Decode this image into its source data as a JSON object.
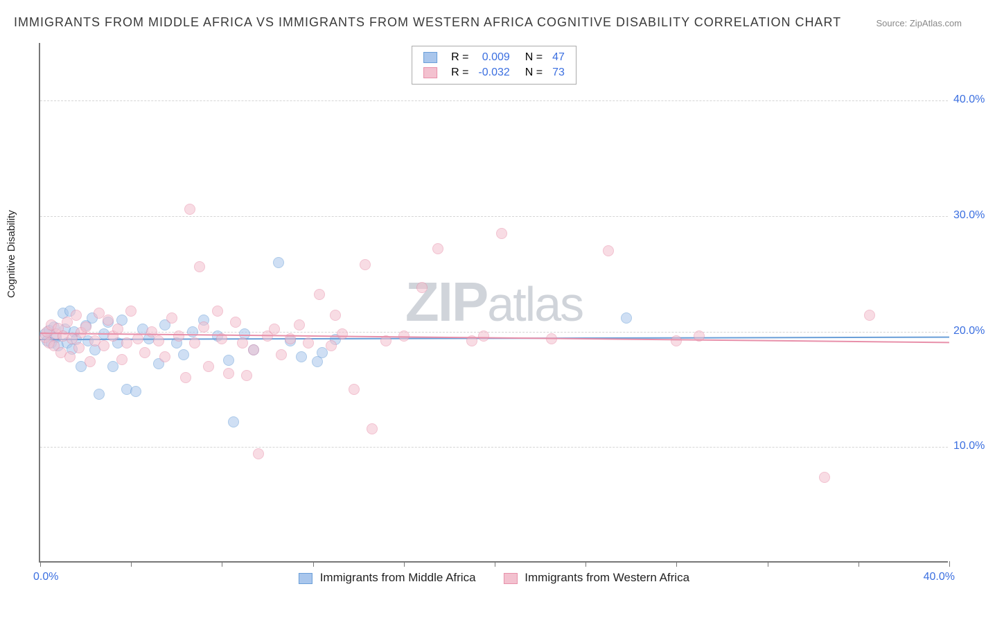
{
  "title": "IMMIGRANTS FROM MIDDLE AFRICA VS IMMIGRANTS FROM WESTERN AFRICA COGNITIVE DISABILITY CORRELATION CHART",
  "source": "Source: ZipAtlas.com",
  "ylabel": "Cognitive Disability",
  "watermark_bold": "ZIP",
  "watermark_light": "atlas",
  "chart": {
    "type": "scatter",
    "xlim": [
      0,
      40
    ],
    "ylim": [
      0,
      45
    ],
    "ytick_values": [
      10,
      20,
      30,
      40
    ],
    "ytick_labels": [
      "10.0%",
      "20.0%",
      "30.0%",
      "40.0%"
    ],
    "xtick_values": [
      0,
      4,
      8,
      12,
      16,
      20,
      24,
      28,
      32,
      36,
      40
    ],
    "xtick_label_left": "0.0%",
    "xtick_label_right": "40.0%",
    "marker_radius": 8,
    "marker_opacity": 0.55,
    "background": "#ffffff",
    "grid_color": "#d5d5d5",
    "axis_color": "#777777",
    "tick_label_color": "#3b6fe0",
    "value_color": "#3b6fe0",
    "series": [
      {
        "name": "Immigrants from Middle Africa",
        "short": "middle",
        "fill": "#a9c6ec",
        "stroke": "#6a9fd8",
        "R": "0.009",
        "N": "47",
        "trend": {
          "y0": 19.4,
          "y1": 19.6
        },
        "points": [
          [
            0.2,
            19.8
          ],
          [
            0.3,
            19.2
          ],
          [
            0.4,
            20.1
          ],
          [
            0.5,
            19.0
          ],
          [
            0.6,
            20.4
          ],
          [
            0.7,
            19.5
          ],
          [
            0.8,
            18.8
          ],
          [
            1.0,
            21.6
          ],
          [
            1.1,
            20.2
          ],
          [
            1.2,
            19.0
          ],
          [
            1.3,
            21.8
          ],
          [
            1.4,
            18.5
          ],
          [
            1.5,
            20.0
          ],
          [
            1.6,
            19.3
          ],
          [
            1.8,
            17.0
          ],
          [
            2.0,
            20.5
          ],
          [
            2.1,
            19.2
          ],
          [
            2.3,
            21.2
          ],
          [
            2.4,
            18.4
          ],
          [
            2.6,
            14.6
          ],
          [
            2.8,
            19.8
          ],
          [
            3.0,
            20.8
          ],
          [
            3.2,
            17.0
          ],
          [
            3.4,
            19.0
          ],
          [
            3.6,
            21.0
          ],
          [
            3.8,
            15.0
          ],
          [
            4.2,
            14.8
          ],
          [
            4.5,
            20.2
          ],
          [
            4.8,
            19.4
          ],
          [
            5.2,
            17.2
          ],
          [
            5.5,
            20.6
          ],
          [
            6.0,
            19.0
          ],
          [
            6.3,
            18.0
          ],
          [
            6.7,
            20.0
          ],
          [
            7.2,
            21.0
          ],
          [
            7.8,
            19.6
          ],
          [
            8.3,
            17.5
          ],
          [
            8.5,
            12.2
          ],
          [
            9.0,
            19.8
          ],
          [
            9.4,
            18.4
          ],
          [
            10.5,
            26.0
          ],
          [
            11.0,
            19.2
          ],
          [
            11.5,
            17.8
          ],
          [
            12.2,
            17.4
          ],
          [
            12.4,
            18.2
          ],
          [
            13.0,
            19.3
          ],
          [
            25.8,
            21.2
          ]
        ]
      },
      {
        "name": "Immigrants from Western Africa",
        "short": "western",
        "fill": "#f3c1cf",
        "stroke": "#e890aa",
        "R": "-0.032",
        "N": "73",
        "trend": {
          "y0": 19.9,
          "y1": 19.1
        },
        "points": [
          [
            0.2,
            19.5
          ],
          [
            0.3,
            20.0
          ],
          [
            0.4,
            19.0
          ],
          [
            0.5,
            20.6
          ],
          [
            0.6,
            18.8
          ],
          [
            0.7,
            19.8
          ],
          [
            0.8,
            20.3
          ],
          [
            0.9,
            18.2
          ],
          [
            1.0,
            19.6
          ],
          [
            1.2,
            20.8
          ],
          [
            1.3,
            17.8
          ],
          [
            1.4,
            19.4
          ],
          [
            1.6,
            21.4
          ],
          [
            1.7,
            18.6
          ],
          [
            1.8,
            19.9
          ],
          [
            2.0,
            20.4
          ],
          [
            2.2,
            17.4
          ],
          [
            2.4,
            19.2
          ],
          [
            2.6,
            21.6
          ],
          [
            2.8,
            18.8
          ],
          [
            3.0,
            21.0
          ],
          [
            3.2,
            19.6
          ],
          [
            3.4,
            20.2
          ],
          [
            3.6,
            17.6
          ],
          [
            3.8,
            19.0
          ],
          [
            4.0,
            21.8
          ],
          [
            4.3,
            19.4
          ],
          [
            4.6,
            18.2
          ],
          [
            4.9,
            20.0
          ],
          [
            5.2,
            19.2
          ],
          [
            5.5,
            17.8
          ],
          [
            5.8,
            21.2
          ],
          [
            6.1,
            19.6
          ],
          [
            6.4,
            16.0
          ],
          [
            6.6,
            30.6
          ],
          [
            6.8,
            19.0
          ],
          [
            7.0,
            25.6
          ],
          [
            7.2,
            20.4
          ],
          [
            7.4,
            17.0
          ],
          [
            7.8,
            21.8
          ],
          [
            8.0,
            19.4
          ],
          [
            8.3,
            16.4
          ],
          [
            8.6,
            20.8
          ],
          [
            8.9,
            19.0
          ],
          [
            9.1,
            16.2
          ],
          [
            9.4,
            18.4
          ],
          [
            9.6,
            9.4
          ],
          [
            10.0,
            19.6
          ],
          [
            10.3,
            20.2
          ],
          [
            10.6,
            18.0
          ],
          [
            11.0,
            19.4
          ],
          [
            11.4,
            20.6
          ],
          [
            11.8,
            19.0
          ],
          [
            12.3,
            23.2
          ],
          [
            12.8,
            18.8
          ],
          [
            13.0,
            21.4
          ],
          [
            13.3,
            19.8
          ],
          [
            13.8,
            15.0
          ],
          [
            14.3,
            25.8
          ],
          [
            14.6,
            11.6
          ],
          [
            15.2,
            19.2
          ],
          [
            16.0,
            19.6
          ],
          [
            16.8,
            23.8
          ],
          [
            17.5,
            27.2
          ],
          [
            19.0,
            19.2
          ],
          [
            19.5,
            19.6
          ],
          [
            20.3,
            28.5
          ],
          [
            22.5,
            19.4
          ],
          [
            25.0,
            27.0
          ],
          [
            28.0,
            19.2
          ],
          [
            29.0,
            19.6
          ],
          [
            34.5,
            7.4
          ],
          [
            36.5,
            21.4
          ]
        ]
      }
    ]
  },
  "legend_r_prefix": "R =",
  "legend_n_prefix": "N ="
}
